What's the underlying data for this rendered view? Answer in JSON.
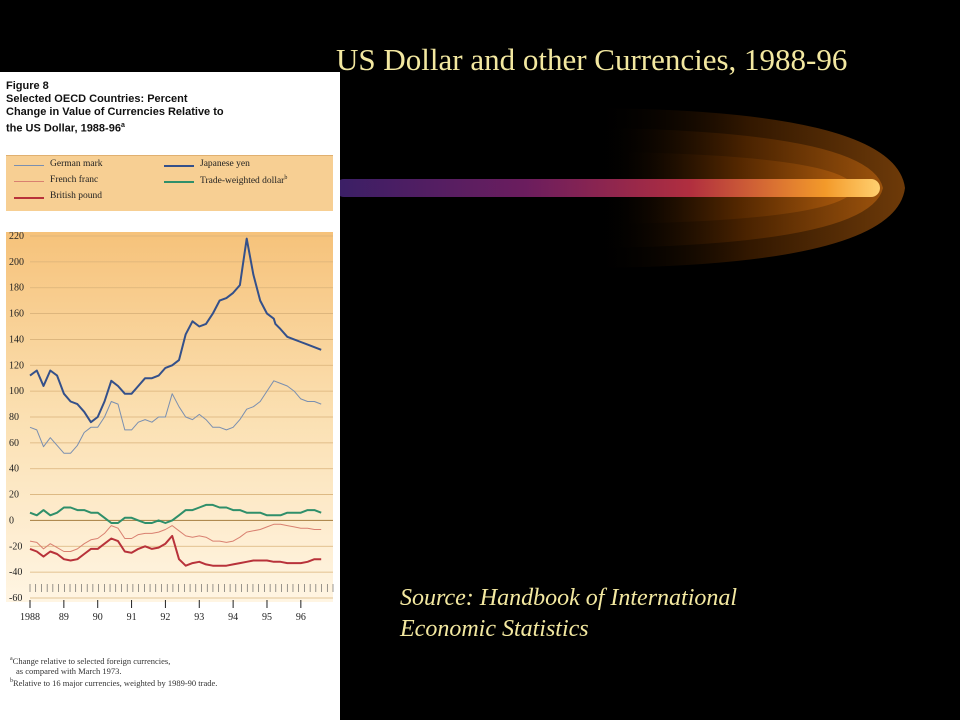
{
  "slide": {
    "title": "US Dollar and other Currencies, 1988-96",
    "source_line1": "Source: Handbook of International",
    "source_line2": "Economic Statistics"
  },
  "figure": {
    "label": "Figure 8",
    "heading_line1": "Selected OECD Countries: Percent",
    "heading_line2": "Change in Value of Currencies Relative to",
    "heading_line3": "the US Dollar, 1988-96",
    "heading_sup": "a",
    "footnote_a_line1": "Change relative to selected foreign currencies,",
    "footnote_a_line2": "as compared with March 1973.",
    "footnote_b": "Relative to 16 major currencies, weighted by 1989-90 trade.",
    "footnote_a_mark": "a",
    "footnote_b_mark": "b"
  },
  "colors": {
    "background": "#000000",
    "title_text": "#f3e8a0",
    "panel_fill": "#f7cf93",
    "german_mark": "#7a8fb0",
    "japanese_yen": "#34508a",
    "french_franc": "#d98070",
    "trade_weighted_dollar": "#2f8f6a",
    "british_pound": "#b8323a"
  },
  "chart_data": {
    "type": "line",
    "title": "Selected OECD Countries: Percent Change in Value of Currencies Relative to the US Dollar, 1988-96",
    "xlabel": "",
    "ylabel": "",
    "ylim": [
      -60,
      220
    ],
    "y_ticks": [
      220,
      200,
      180,
      160,
      140,
      120,
      100,
      80,
      60,
      40,
      20,
      0,
      -20,
      -40,
      -60
    ],
    "x_tick_labels": [
      "1988",
      "89",
      "90",
      "91",
      "92",
      "93",
      "94",
      "95",
      "96"
    ],
    "x_range": [
      1988.0,
      1996.95
    ],
    "grid": true,
    "legend": "top",
    "series": [
      {
        "name": "German mark",
        "color": "#7a8fb0",
        "x": [
          1988.0,
          1988.2,
          1988.4,
          1988.6,
          1988.8,
          1989.0,
          1989.2,
          1989.4,
          1989.6,
          1989.8,
          1990.0,
          1990.2,
          1990.4,
          1990.6,
          1990.8,
          1991.0,
          1991.2,
          1991.4,
          1991.6,
          1991.8,
          1992.0,
          1992.2,
          1992.4,
          1992.6,
          1992.8,
          1993.0,
          1993.2,
          1993.4,
          1993.6,
          1993.8,
          1994.0,
          1994.2,
          1994.4,
          1994.6,
          1994.8,
          1995.0,
          1995.2,
          1995.4,
          1995.6,
          1995.8,
          1996.0,
          1996.2,
          1996.4,
          1996.6
        ],
        "y": [
          72,
          70,
          57,
          64,
          58,
          52,
          52,
          58,
          68,
          72,
          72,
          80,
          92,
          90,
          70,
          70,
          76,
          78,
          76,
          80,
          80,
          98,
          88,
          80,
          78,
          82,
          78,
          72,
          72,
          70,
          72,
          78,
          86,
          88,
          92,
          100,
          108,
          106,
          104,
          100,
          94,
          92,
          92,
          90
        ]
      },
      {
        "name": "Japanese yen",
        "color": "#34508a",
        "x": [
          1988.0,
          1988.2,
          1988.4,
          1988.6,
          1988.8,
          1989.0,
          1989.2,
          1989.4,
          1989.6,
          1989.8,
          1990.0,
          1990.2,
          1990.4,
          1990.6,
          1990.8,
          1991.0,
          1991.2,
          1991.4,
          1991.6,
          1991.8,
          1992.0,
          1992.2,
          1992.4,
          1992.6,
          1992.8,
          1993.0,
          1993.2,
          1993.4,
          1993.6,
          1993.8,
          1994.0,
          1994.2,
          1994.4,
          1994.6,
          1994.8,
          1995.0,
          1995.2,
          1995.25,
          1995.4,
          1995.6,
          1995.8,
          1996.0,
          1996.2,
          1996.4,
          1996.6
        ],
        "y": [
          112,
          116,
          104,
          116,
          112,
          98,
          92,
          90,
          84,
          76,
          80,
          92,
          108,
          104,
          98,
          98,
          104,
          110,
          110,
          112,
          118,
          120,
          124,
          144,
          154,
          150,
          152,
          160,
          170,
          172,
          176,
          182,
          218,
          190,
          170,
          160,
          156,
          152,
          148,
          142,
          140,
          138,
          136,
          134,
          132
        ]
      },
      {
        "name": "French franc",
        "color": "#d98070",
        "x": [
          1988.0,
          1988.2,
          1988.4,
          1988.6,
          1988.8,
          1989.0,
          1989.2,
          1989.4,
          1989.6,
          1989.8,
          1990.0,
          1990.2,
          1990.4,
          1990.6,
          1990.8,
          1991.0,
          1991.2,
          1991.4,
          1991.6,
          1991.8,
          1992.0,
          1992.2,
          1992.4,
          1992.6,
          1992.8,
          1993.0,
          1993.2,
          1993.4,
          1993.6,
          1993.8,
          1994.0,
          1994.2,
          1994.4,
          1994.6,
          1994.8,
          1995.0,
          1995.2,
          1995.4,
          1995.6,
          1995.8,
          1996.0,
          1996.2,
          1996.4,
          1996.6
        ],
        "y": [
          -16,
          -17,
          -22,
          -18,
          -21,
          -24,
          -24,
          -22,
          -18,
          -15,
          -14,
          -10,
          -4,
          -6,
          -14,
          -14,
          -11,
          -10,
          -10,
          -9,
          -7,
          -4,
          -8,
          -12,
          -13,
          -12,
          -13,
          -16,
          -16,
          -17,
          -16,
          -13,
          -9,
          -8,
          -7,
          -5,
          -3,
          -3,
          -4,
          -5,
          -6,
          -6,
          -7,
          -7
        ]
      },
      {
        "name": "Trade-weighted dollar",
        "color": "#2f8f6a",
        "x": [
          1988.0,
          1988.2,
          1988.4,
          1988.6,
          1988.8,
          1989.0,
          1989.2,
          1989.4,
          1989.6,
          1989.8,
          1990.0,
          1990.2,
          1990.4,
          1990.6,
          1990.8,
          1991.0,
          1991.2,
          1991.4,
          1991.6,
          1991.8,
          1992.0,
          1992.2,
          1992.4,
          1992.6,
          1992.8,
          1993.0,
          1993.2,
          1993.4,
          1993.6,
          1993.8,
          1994.0,
          1994.2,
          1994.4,
          1994.6,
          1994.8,
          1995.0,
          1995.2,
          1995.4,
          1995.6,
          1995.8,
          1996.0,
          1996.2,
          1996.4,
          1996.6
        ],
        "y": [
          6,
          4,
          8,
          4,
          6,
          10,
          10,
          8,
          8,
          6,
          6,
          2,
          -2,
          -2,
          2,
          2,
          0,
          -2,
          -2,
          0,
          -2,
          0,
          4,
          8,
          8,
          10,
          12,
          12,
          10,
          10,
          8,
          8,
          6,
          6,
          6,
          4,
          4,
          4,
          6,
          6,
          6,
          8,
          8,
          6
        ]
      },
      {
        "name": "British pound",
        "color": "#b8323a",
        "x": [
          1988.0,
          1988.2,
          1988.4,
          1988.6,
          1988.8,
          1989.0,
          1989.2,
          1989.4,
          1989.6,
          1989.8,
          1990.0,
          1990.2,
          1990.4,
          1990.6,
          1990.8,
          1991.0,
          1991.2,
          1991.4,
          1991.6,
          1991.8,
          1992.0,
          1992.2,
          1992.4,
          1992.6,
          1992.8,
          1993.0,
          1993.2,
          1993.4,
          1993.6,
          1993.8,
          1994.0,
          1994.2,
          1994.4,
          1994.6,
          1994.8,
          1995.0,
          1995.2,
          1995.4,
          1995.6,
          1995.8,
          1996.0,
          1996.2,
          1996.4,
          1996.6
        ],
        "y": [
          -22,
          -24,
          -28,
          -24,
          -26,
          -30,
          -31,
          -30,
          -26,
          -22,
          -22,
          -18,
          -14,
          -16,
          -24,
          -25,
          -22,
          -20,
          -22,
          -21,
          -18,
          -12,
          -30,
          -35,
          -33,
          -32,
          -34,
          -35,
          -35,
          -35,
          -34,
          -33,
          -32,
          -31,
          -31,
          -31,
          -32,
          -32,
          -33,
          -33,
          -33,
          -32,
          -30,
          -30
        ]
      }
    ]
  }
}
